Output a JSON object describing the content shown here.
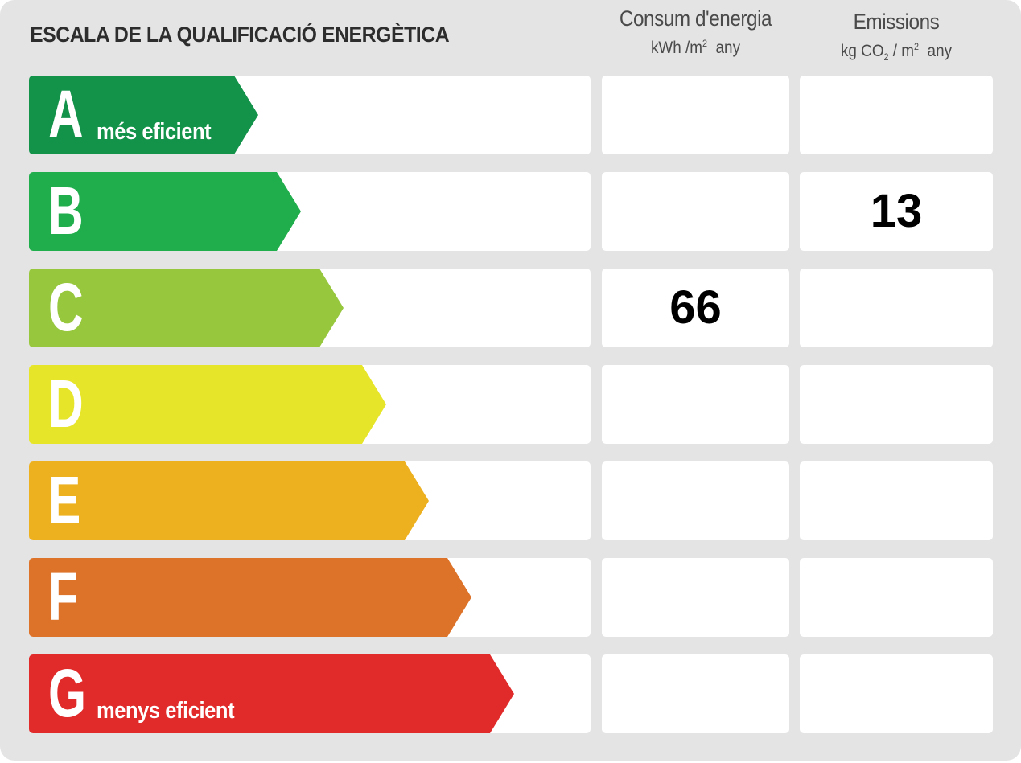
{
  "title": "ESCALA DE LA QUALIFICACIÓ ENERGÈTICA",
  "columns": {
    "consum": {
      "title": "Consum d'energia",
      "unit_prefix": "kWh /m",
      "unit_sup": "2",
      "unit_suffix": "any"
    },
    "emissions": {
      "title": "Emissions",
      "unit_prefix": "kg CO",
      "unit_sub": "2",
      "unit_mid": " / m",
      "unit_sup": "2",
      "unit_suffix": "any"
    }
  },
  "ratings": [
    {
      "letter": "A",
      "label": "més eficient",
      "color": "#13924a",
      "consum": "",
      "emissions": ""
    },
    {
      "letter": "B",
      "label": "",
      "color": "#1fae4b",
      "consum": "",
      "emissions": "13"
    },
    {
      "letter": "C",
      "label": "",
      "color": "#97c73d",
      "consum": "66",
      "emissions": ""
    },
    {
      "letter": "D",
      "label": "",
      "color": "#e7e52a",
      "consum": "",
      "emissions": ""
    },
    {
      "letter": "E",
      "label": "",
      "color": "#edb120",
      "consum": "",
      "emissions": ""
    },
    {
      "letter": "F",
      "label": "",
      "color": "#dd7229",
      "consum": "",
      "emissions": ""
    },
    {
      "letter": "G",
      "label": "menys eficient",
      "color": "#e12b2b",
      "consum": "",
      "emissions": ""
    }
  ],
  "result": {
    "consum_value": "66",
    "consum_rating": "C",
    "emissions_value": "13",
    "emissions_rating": "B"
  }
}
